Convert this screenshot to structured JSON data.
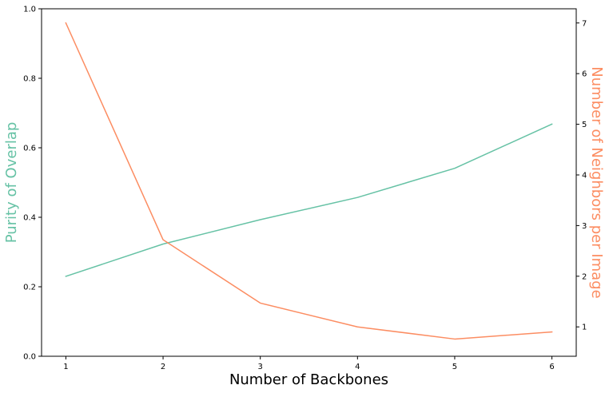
{
  "chart_data": {
    "type": "line",
    "title": "",
    "xlabel": "Number of Backbones",
    "ylabel_left": "Purity of Overlap",
    "ylabel_right": "Number of Neighbors per Image",
    "x": [
      1,
      2,
      3,
      4,
      5,
      6
    ],
    "x_ticks": [
      "1",
      "2",
      "3",
      "4",
      "5",
      "6"
    ],
    "xlim": [
      0.75,
      6.25
    ],
    "y_left_ticks": [
      "0.0",
      "0.2",
      "0.4",
      "0.6",
      "0.8",
      "1.0"
    ],
    "y_left_lim": [
      0,
      1
    ],
    "y_right_ticks": [
      "1",
      "2",
      "3",
      "4",
      "5",
      "6",
      "7"
    ],
    "y_right_lim": [
      0.42,
      7.28
    ],
    "grid": false,
    "series": [
      {
        "axis": "left",
        "color": "#66c2a5",
        "values": [
          0.23,
          0.323,
          0.393,
          0.457,
          0.541,
          0.668
        ]
      },
      {
        "axis": "right",
        "color": "#fc8d62",
        "values": [
          7.0,
          2.72,
          1.47,
          1.0,
          0.76,
          0.9
        ]
      }
    ]
  }
}
